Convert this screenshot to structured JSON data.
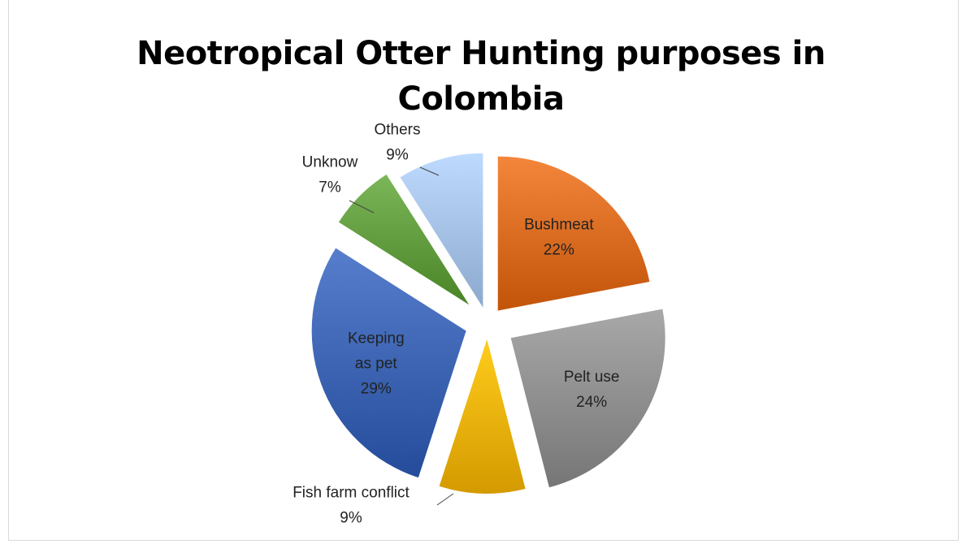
{
  "chart_data": {
    "type": "pie",
    "title": "Neotropical Otter Hunting purposes in Colombia",
    "title_lines": [
      "Neotropical Otter Hunting purposes in",
      "Colombia"
    ],
    "slices": [
      {
        "label": "Bushmeat",
        "label_lines": [
          "Bushmeat"
        ],
        "percent": "22%",
        "value": 22,
        "color": "#d86a20",
        "label_position": "inside"
      },
      {
        "label": "Pelt use",
        "label_lines": [
          "Pelt use"
        ],
        "percent": "24%",
        "value": 24,
        "color": "#8c8c8c",
        "label_position": "inside"
      },
      {
        "label": "Fish farm conflict",
        "label_lines": [
          "Fish farm conflict"
        ],
        "percent": "9%",
        "value": 9,
        "color": "#eab000",
        "label_position": "outside"
      },
      {
        "label": "Keeping as pet",
        "label_lines": [
          "Keeping",
          "as pet"
        ],
        "percent": "29%",
        "value": 29,
        "color": "#3a62b0",
        "label_position": "inside"
      },
      {
        "label": "Unknow",
        "label_lines": [
          "Unknow"
        ],
        "percent": "7%",
        "value": 7,
        "color": "#5f9a3c",
        "label_position": "outside"
      },
      {
        "label": "Others",
        "label_lines": [
          "Others"
        ],
        "percent": "9%",
        "value": 9,
        "color": "#a2bfe3",
        "label_position": "outside"
      }
    ],
    "exploded": true,
    "legend": "none"
  }
}
